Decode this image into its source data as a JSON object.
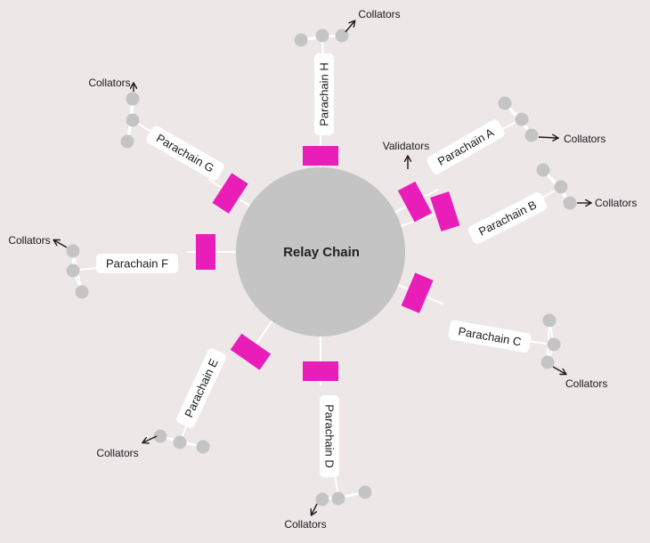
{
  "diagram": {
    "center_label": "Relay Chain",
    "colors": {
      "background": "#ede7e8",
      "relay": "#c4c4c4",
      "node": "#c4c4c4",
      "connector": "#ffffff",
      "validator_block": "#e91eb9",
      "label_fill": "#ffffff",
      "text": "#1a1a1a"
    },
    "validators_label": "Validators",
    "parachains": [
      {
        "id": "A",
        "label": "Parachain A",
        "collators_label": "Collators"
      },
      {
        "id": "B",
        "label": "Parachain B",
        "collators_label": "Collators"
      },
      {
        "id": "C",
        "label": "Parachain C",
        "collators_label": "Collators"
      },
      {
        "id": "D",
        "label": "Parachain D",
        "collators_label": "Collators"
      },
      {
        "id": "E",
        "label": "Parachain E",
        "collators_label": "Collators"
      },
      {
        "id": "F",
        "label": "Parachain F",
        "collators_label": "Collators"
      },
      {
        "id": "G",
        "label": "Parachain G",
        "collators_label": "Collators"
      },
      {
        "id": "H",
        "label": "Parachain H",
        "collators_label": "Collators"
      }
    ]
  }
}
